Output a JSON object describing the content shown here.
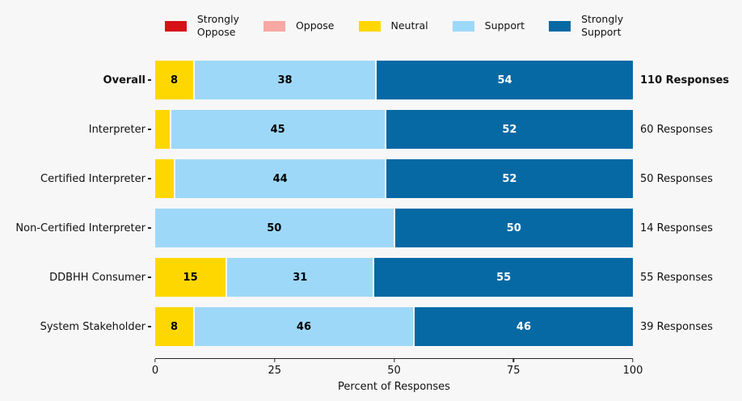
{
  "figure": {
    "background": "#f7f7f7"
  },
  "legend": {
    "items": [
      {
        "key": "strongly_oppose",
        "label": "Strongly\nOppose",
        "color": "#d61117"
      },
      {
        "key": "oppose",
        "label": "Oppose",
        "color": "#f7a8a3"
      },
      {
        "key": "neutral",
        "label": "Neutral",
        "color": "#ffd700"
      },
      {
        "key": "support",
        "label": "Support",
        "color": "#9ed8f8"
      },
      {
        "key": "strongly_support",
        "label": "Strongly\nSupport",
        "color": "#0669a4"
      }
    ]
  },
  "chart_data": {
    "type": "bar",
    "orientation": "horizontal",
    "stacked": true,
    "title": "",
    "xlabel": "Percent of Responses",
    "ylabel": "",
    "xlim": [
      0,
      100
    ],
    "xticks": [
      0,
      25,
      50,
      75,
      100
    ],
    "grid": false,
    "legend_position": "top-center",
    "series_order": [
      "strongly_oppose",
      "oppose",
      "neutral",
      "support",
      "strongly_support"
    ],
    "series_names": [
      "Strongly Oppose",
      "Oppose",
      "Neutral",
      "Support",
      "Strongly Support"
    ],
    "label_text_color": {
      "strongly_oppose": "#ffffff",
      "oppose": "#000000",
      "neutral": "#000000",
      "support": "#000000",
      "strongly_support": "#ffffff"
    },
    "min_value_for_label": 5,
    "rows": [
      {
        "category": "Overall",
        "emphasis": true,
        "responses": "110 Responses",
        "values": {
          "strongly_oppose": 0,
          "oppose": 0,
          "neutral": 8,
          "support": 38,
          "strongly_support": 54
        }
      },
      {
        "category": "Interpreter",
        "emphasis": false,
        "responses": "60 Responses",
        "values": {
          "strongly_oppose": 0,
          "oppose": 0,
          "neutral": 3,
          "support": 45,
          "strongly_support": 52
        }
      },
      {
        "category": "Certified Interpreter",
        "emphasis": false,
        "responses": "50 Responses",
        "values": {
          "strongly_oppose": 0,
          "oppose": 0,
          "neutral": 4,
          "support": 44,
          "strongly_support": 52
        }
      },
      {
        "category": "Non-Certified Interpreter",
        "emphasis": false,
        "responses": "14 Responses",
        "values": {
          "strongly_oppose": 0,
          "oppose": 0,
          "neutral": 0,
          "support": 50,
          "strongly_support": 50
        }
      },
      {
        "category": "DDBHH Consumer",
        "emphasis": false,
        "responses": "55 Responses",
        "values": {
          "strongly_oppose": 0,
          "oppose": 0,
          "neutral": 15,
          "support": 31,
          "strongly_support": 55
        }
      },
      {
        "category": "System Stakeholder",
        "emphasis": false,
        "responses": "39 Responses",
        "values": {
          "strongly_oppose": 0,
          "oppose": 0,
          "neutral": 8,
          "support": 46,
          "strongly_support": 46
        }
      }
    ]
  }
}
